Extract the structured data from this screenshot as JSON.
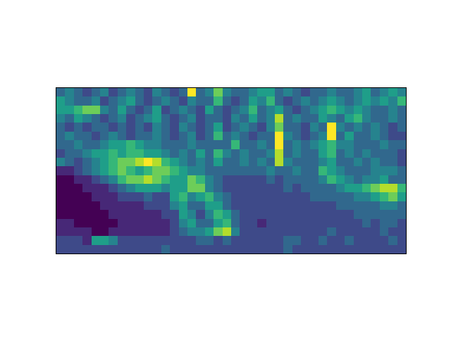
{
  "chart_data": {
    "type": "heatmap",
    "color": "Viridis",
    "zlim": [
      0,
      9
    ],
    "xlim": [
      -0.5,
      39.5
    ],
    "ylim": [
      18.5,
      -0.5
    ],
    "tick_labels": false,
    "z": [
      [
        3,
        4,
        3,
        2,
        3,
        4,
        2,
        3,
        4,
        3,
        2,
        4,
        3,
        2,
        3,
        9,
        3,
        4,
        7,
        4,
        3,
        3,
        4,
        5,
        5,
        3,
        4,
        3,
        2,
        3,
        3,
        4,
        3,
        3,
        4,
        5,
        3,
        4,
        5,
        4
      ],
      [
        5,
        4,
        3,
        3,
        4,
        2,
        3,
        4,
        5,
        3,
        2,
        3,
        4,
        3,
        2,
        4,
        3,
        3,
        6,
        3,
        2,
        3,
        5,
        4,
        6,
        3,
        2,
        3,
        4,
        3,
        4,
        5,
        4,
        3,
        4,
        5,
        4,
        5,
        4,
        6
      ],
      [
        5,
        5,
        6,
        7,
        7,
        4,
        3,
        5,
        3,
        2,
        3,
        5,
        2,
        3,
        4,
        3,
        2,
        5,
        3,
        2,
        3,
        4,
        6,
        3,
        4,
        5,
        3,
        2,
        3,
        4,
        5,
        6,
        5,
        4,
        5,
        4,
        3,
        3,
        4,
        3
      ],
      [
        4,
        3,
        5,
        4,
        3,
        2,
        3,
        4,
        2,
        3,
        4,
        5,
        3,
        2,
        3,
        4,
        2,
        3,
        3,
        2,
        4,
        3,
        5,
        3,
        4,
        8,
        3,
        4,
        3,
        3,
        5,
        4,
        3,
        5,
        6,
        4,
        3,
        3,
        4,
        3
      ],
      [
        3,
        2,
        3,
        2,
        3,
        3,
        2,
        3,
        2,
        3,
        2,
        4,
        3,
        2,
        4,
        3,
        2,
        3,
        5,
        2,
        3,
        4,
        3,
        2,
        4,
        7,
        3,
        3,
        2,
        4,
        3,
        9,
        4,
        3,
        4,
        3,
        4,
        3,
        2,
        3
      ],
      [
        3,
        4,
        3,
        3,
        2,
        3,
        4,
        3,
        2,
        3,
        3,
        4,
        3,
        2,
        3,
        4,
        2,
        3,
        6,
        3,
        4,
        3,
        2,
        3,
        3,
        9,
        4,
        3,
        2,
        3,
        4,
        9,
        3,
        5,
        3,
        3,
        4,
        3,
        2,
        2
      ],
      [
        3,
        3,
        4,
        3,
        3,
        4,
        5,
        5,
        6,
        5,
        4,
        4,
        3,
        3,
        3,
        4,
        3,
        3,
        3,
        3,
        6,
        3,
        3,
        4,
        3,
        9,
        3,
        4,
        3,
        4,
        5,
        6,
        4,
        4,
        3,
        3,
        3,
        4,
        3,
        3
      ],
      [
        2,
        3,
        3,
        4,
        5,
        5,
        6,
        5,
        6,
        6,
        5,
        5,
        4,
        3,
        4,
        3,
        5,
        3,
        6,
        4,
        3,
        4,
        3,
        3,
        4,
        8,
        3,
        4,
        3,
        3,
        5,
        6,
        3,
        4,
        3,
        4,
        3,
        3,
        3,
        2
      ],
      [
        4,
        3,
        2,
        3,
        4,
        5,
        6,
        7,
        7,
        8,
        9,
        8,
        6,
        5,
        4,
        3,
        4,
        3,
        5,
        3,
        3,
        4,
        3,
        4,
        3,
        8,
        4,
        3,
        3,
        3,
        4,
        5,
        3,
        3,
        4,
        3,
        4,
        3,
        3,
        2
      ],
      [
        1,
        1,
        2,
        3,
        4,
        5,
        6,
        7,
        6,
        5,
        6,
        7,
        7,
        6,
        5,
        4,
        4,
        3,
        3,
        3,
        3,
        3,
        3,
        3,
        4,
        3,
        3,
        4,
        3,
        3,
        6,
        5,
        4,
        3,
        3,
        3,
        4,
        4,
        4,
        3
      ],
      [
        0,
        0,
        1,
        1,
        2,
        3,
        4,
        6,
        7,
        7,
        8,
        7,
        6,
        5,
        5,
        7,
        6,
        4,
        3,
        2,
        2,
        2,
        2,
        2,
        3,
        2,
        3,
        3,
        3,
        3,
        4,
        6,
        5,
        4,
        3,
        4,
        4,
        5,
        3,
        3
      ],
      [
        0,
        0,
        0,
        1,
        1,
        1,
        2,
        3,
        4,
        5,
        5,
        5,
        4,
        5,
        5,
        7,
        7,
        4,
        3,
        2,
        2,
        2,
        2,
        2,
        2,
        2,
        3,
        2,
        3,
        3,
        3,
        3,
        4,
        5,
        5,
        6,
        7,
        8,
        8,
        6
      ],
      [
        0,
        0,
        0,
        0,
        1,
        1,
        1,
        2,
        2,
        2,
        3,
        2,
        2,
        5,
        6,
        4,
        5,
        6,
        4,
        3,
        2,
        2,
        2,
        2,
        2,
        2,
        2,
        2,
        2,
        3,
        3,
        3,
        3,
        3,
        4,
        4,
        5,
        6,
        7,
        5
      ],
      [
        0,
        0,
        0,
        0,
        0,
        1,
        1,
        1,
        1,
        1,
        2,
        2,
        2,
        4,
        5,
        3,
        3,
        5,
        5,
        3,
        2,
        2,
        2,
        2,
        2,
        2,
        2,
        2,
        2,
        2,
        2,
        2,
        3,
        3,
        3,
        3,
        3,
        4,
        4,
        3
      ],
      [
        0,
        0,
        0,
        0,
        0,
        0,
        1,
        1,
        1,
        1,
        1,
        1,
        2,
        2,
        5,
        4,
        2,
        4,
        6,
        5,
        3,
        2,
        2,
        2,
        2,
        2,
        2,
        2,
        2,
        2,
        2,
        2,
        2,
        2,
        3,
        3,
        3,
        3,
        3,
        3
      ],
      [
        1,
        1,
        0,
        0,
        0,
        0,
        0,
        1,
        1,
        1,
        1,
        1,
        1,
        2,
        4,
        5,
        3,
        3,
        5,
        6,
        3,
        2,
        2,
        1,
        2,
        2,
        2,
        2,
        2,
        2,
        2,
        2,
        2,
        2,
        2,
        3,
        2,
        3,
        3,
        2
      ],
      [
        1,
        1,
        1,
        1,
        0,
        0,
        1,
        1,
        1,
        1,
        1,
        1,
        1,
        2,
        3,
        4,
        4,
        5,
        7,
        8,
        4,
        2,
        2,
        2,
        2,
        2,
        2,
        2,
        2,
        2,
        2,
        3,
        2,
        2,
        2,
        2,
        2,
        3,
        2,
        2
      ],
      [
        2,
        2,
        2,
        1,
        5,
        5,
        4,
        2,
        2,
        2,
        2,
        2,
        2,
        2,
        2,
        2,
        3,
        3,
        2,
        3,
        2,
        2,
        2,
        2,
        2,
        2,
        3,
        3,
        2,
        2,
        3,
        2,
        2,
        3,
        2,
        2,
        2,
        2,
        3,
        2
      ],
      [
        2,
        2,
        2,
        2,
        2,
        2,
        2,
        2,
        2,
        2,
        2,
        2,
        3,
        2,
        2,
        2,
        2,
        2,
        2,
        2,
        2,
        2,
        2,
        2,
        2,
        2,
        3,
        2,
        2,
        2,
        2,
        2,
        2,
        2,
        2,
        2,
        2,
        2,
        2,
        2
      ]
    ]
  }
}
